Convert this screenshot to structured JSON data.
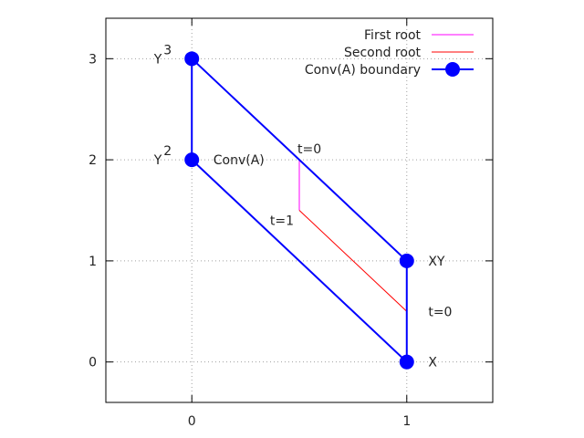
{
  "chart_data": {
    "type": "line",
    "xlim": [
      -0.4,
      1.4
    ],
    "ylim": [
      -0.4,
      3.4
    ],
    "x_ticks": [
      0,
      1
    ],
    "y_ticks": [
      0,
      1,
      2,
      3
    ],
    "x_tick_labels": [
      "0",
      "1"
    ],
    "y_tick_labels": [
      "0",
      "1",
      "2",
      "3"
    ],
    "grid": true,
    "legend_position": "top-right",
    "series": [
      {
        "name": "First root",
        "color": "#ff00ff",
        "x": [
          0.5,
          0.5
        ],
        "y": [
          2,
          1.5
        ]
      },
      {
        "name": "Second root",
        "color": "#ff0000",
        "x": [
          0.5,
          1
        ],
        "y": [
          1.5,
          0.5
        ]
      },
      {
        "name": "Conv(A) boundary",
        "color": "#0000ff",
        "markers": true,
        "x": [
          0,
          0,
          1,
          1,
          0
        ],
        "y": [
          2,
          3,
          1,
          0,
          2
        ]
      }
    ],
    "annotations": [
      {
        "text": "Y",
        "sup": "3",
        "x": 0,
        "y": 3,
        "side": "left"
      },
      {
        "text": "Y",
        "sup": "2",
        "x": 0,
        "y": 2,
        "side": "left"
      },
      {
        "text": "Conv(A)",
        "x": 0.1,
        "y": 2
      },
      {
        "text": "t=0",
        "x": 0.5,
        "y": 2.1
      },
      {
        "text": "t=1",
        "x": 0.5,
        "y": 1.5,
        "side": "left"
      },
      {
        "text": "XY",
        "x": 1.1,
        "y": 1
      },
      {
        "text": "t=0",
        "x": 1.1,
        "y": 0.5
      },
      {
        "text": "X",
        "x": 1.1,
        "y": 0
      }
    ]
  }
}
